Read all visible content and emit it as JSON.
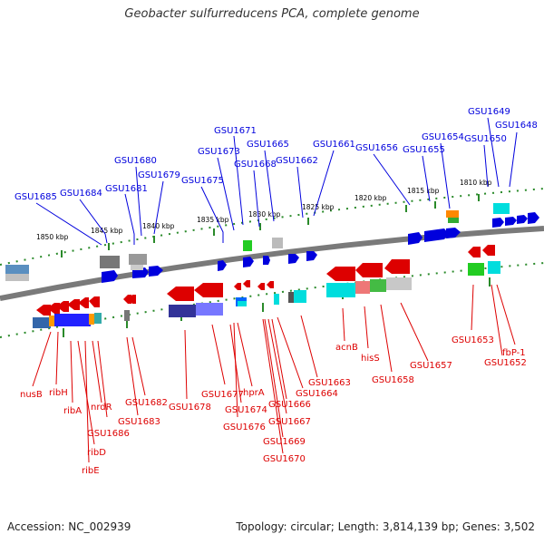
{
  "title": "Geobacter sulfurreducens PCA, complete genome",
  "footer": {
    "accession": "Accession: NC_002939",
    "topology": "Topology: circular; Length: 3,814,139 bp; Genes: 3,502"
  },
  "colors": {
    "forward": "#0000dd",
    "reverse": "#dd0000",
    "backbone": "#7a7a7a",
    "tick": "#2a8a2a"
  },
  "kbp_labels": [
    "1850 kbp",
    "1845 kbp",
    "1840 kbp",
    "1835 kbp",
    "1830 kbp",
    "1825 kbp",
    "1820 kbp",
    "1815 kbp",
    "1810 kbp"
  ],
  "top_genes": [
    "GSU1685",
    "GSU1684",
    "GSU1681",
    "GSU1680",
    "GSU1679",
    "GSU1675",
    "GSU1673",
    "GSU1671",
    "GSU1668",
    "GSU1665",
    "GSU1662",
    "GSU1661",
    "GSU1656",
    "GSU1655",
    "GSU1654",
    "GSU1650",
    "GSU1649",
    "GSU1648"
  ],
  "bottom_genes": [
    "nusB",
    "ribH",
    "ribA",
    "ribD",
    "ribE",
    "nrdR",
    "GSU1686",
    "GSU1682",
    "GSU1683",
    "GSU1678",
    "GSU1677",
    "GSU1674",
    "GSU1676",
    "hprA",
    "GSU1666",
    "GSU1667",
    "GSU1669",
    "GSU1670",
    "GSU1664",
    "GSU1663",
    "acnB",
    "hisS",
    "GSU1658",
    "GSU1657",
    "GSU1653",
    "GSU1652",
    "fbP-1"
  ]
}
